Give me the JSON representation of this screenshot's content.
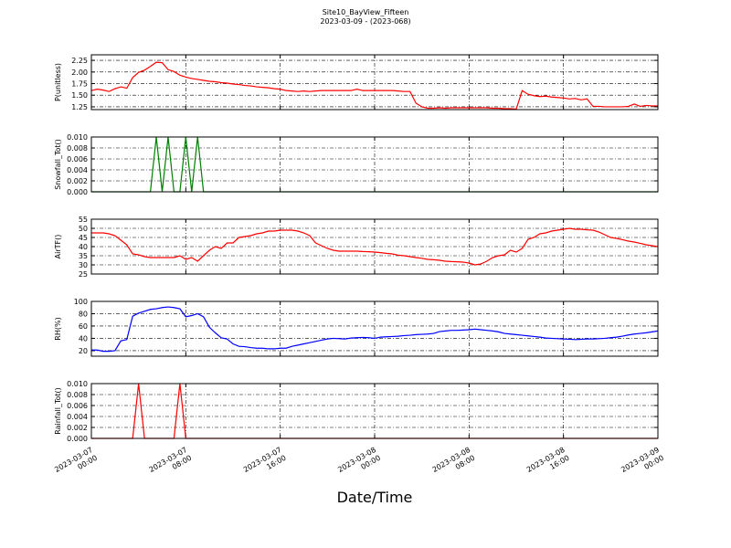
{
  "title": "Site10_BayView_Fifteen",
  "subtitle": "2023-03-09 - (2023-068)",
  "x_axis": {
    "label": "Date/Time",
    "xlim": [
      "2023-03-07 00:00",
      "2023-03-09 00:00"
    ],
    "xticks": [
      "2023-03-07 00:00",
      "2023-03-07 08:00",
      "2023-03-07 16:00",
      "2023-03-08 00:00",
      "2023-03-08 08:00",
      "2023-03-08 16:00",
      "2023-03-09 00:00"
    ],
    "grid": true
  },
  "x": [
    "2023-03-07 00:00",
    "2023-03-07 00:30",
    "2023-03-07 01:00",
    "2023-03-07 01:30",
    "2023-03-07 02:00",
    "2023-03-07 02:30",
    "2023-03-07 03:00",
    "2023-03-07 03:30",
    "2023-03-07 04:00",
    "2023-03-07 04:30",
    "2023-03-07 05:00",
    "2023-03-07 05:30",
    "2023-03-07 06:00",
    "2023-03-07 06:30",
    "2023-03-07 07:00",
    "2023-03-07 07:30",
    "2023-03-07 08:00",
    "2023-03-07 08:30",
    "2023-03-07 09:00",
    "2023-03-07 09:30",
    "2023-03-07 10:00",
    "2023-03-07 10:30",
    "2023-03-07 11:00",
    "2023-03-07 11:30",
    "2023-03-07 12:00",
    "2023-03-07 12:30",
    "2023-03-07 13:00",
    "2023-03-07 13:30",
    "2023-03-07 14:00",
    "2023-03-07 14:30",
    "2023-03-07 15:00",
    "2023-03-07 15:30",
    "2023-03-07 16:00",
    "2023-03-07 16:30",
    "2023-03-07 17:00",
    "2023-03-07 17:30",
    "2023-03-07 18:00",
    "2023-03-07 18:30",
    "2023-03-07 19:00",
    "2023-03-07 19:30",
    "2023-03-07 20:00",
    "2023-03-07 20:30",
    "2023-03-07 21:00",
    "2023-03-07 21:30",
    "2023-03-07 22:00",
    "2023-03-07 22:30",
    "2023-03-07 23:00",
    "2023-03-07 23:30",
    "2023-03-08 00:00",
    "2023-03-08 00:30",
    "2023-03-08 01:00",
    "2023-03-08 01:30",
    "2023-03-08 02:00",
    "2023-03-08 02:30",
    "2023-03-08 03:00",
    "2023-03-08 03:30",
    "2023-03-08 04:00",
    "2023-03-08 04:30",
    "2023-03-08 05:00",
    "2023-03-08 05:30",
    "2023-03-08 06:00",
    "2023-03-08 06:30",
    "2023-03-08 07:00",
    "2023-03-08 07:30",
    "2023-03-08 08:00",
    "2023-03-08 08:30",
    "2023-03-08 09:00",
    "2023-03-08 09:30",
    "2023-03-08 10:00",
    "2023-03-08 10:30",
    "2023-03-08 11:00",
    "2023-03-08 11:30",
    "2023-03-08 12:00",
    "2023-03-08 12:30",
    "2023-03-08 13:00",
    "2023-03-08 13:30",
    "2023-03-08 14:00",
    "2023-03-08 14:30",
    "2023-03-08 15:00",
    "2023-03-08 15:30",
    "2023-03-08 16:00",
    "2023-03-08 16:30",
    "2023-03-08 17:00",
    "2023-03-08 17:30",
    "2023-03-08 18:00",
    "2023-03-08 18:30",
    "2023-03-08 19:00",
    "2023-03-08 19:30",
    "2023-03-08 20:00",
    "2023-03-08 20:30",
    "2023-03-08 21:00",
    "2023-03-08 21:30",
    "2023-03-08 22:00",
    "2023-03-08 22:30",
    "2023-03-08 23:00",
    "2023-03-08 23:30",
    "2023-03-09 00:00"
  ],
  "chart_data": [
    {
      "type": "line",
      "y_label": "P(unitless)",
      "ylim": [
        1.19,
        2.37
      ],
      "yticks": [
        1.25,
        {
          "value": 1.5,
          "label": "1.50"
        },
        1.75,
        {
          "value": 2,
          "label": "2.00"
        },
        2.25
      ],
      "grid": true,
      "series": [
        {
          "color": "#ff0000",
          "values": [
            1.6,
            1.63,
            1.61,
            1.58,
            1.64,
            1.68,
            1.65,
            1.88,
            1.99,
            2.04,
            2.12,
            2.21,
            2.2,
            2.05,
            2.01,
            1.93,
            1.89,
            1.86,
            1.84,
            1.82,
            1.8,
            1.79,
            1.77,
            1.76,
            1.74,
            1.73,
            1.71,
            1.7,
            1.68,
            1.67,
            1.66,
            1.64,
            1.63,
            1.6,
            1.59,
            1.58,
            1.59,
            1.58,
            1.59,
            1.6,
            1.6,
            1.6,
            1.6,
            1.6,
            1.6,
            1.63,
            1.6,
            1.6,
            1.6,
            1.6,
            1.6,
            1.6,
            1.59,
            1.58,
            1.58,
            1.33,
            1.25,
            1.22,
            1.22,
            1.23,
            1.22,
            1.23,
            1.23,
            1.23,
            1.23,
            1.23,
            1.23,
            1.23,
            1.22,
            1.22,
            1.21,
            1.21,
            1.2,
            1.6,
            1.52,
            1.49,
            1.47,
            1.48,
            1.46,
            1.45,
            1.44,
            1.42,
            1.43,
            1.4,
            1.42,
            1.26,
            1.26,
            1.25,
            1.25,
            1.25,
            1.25,
            1.26,
            1.31,
            1.26,
            1.28,
            1.27,
            1.27
          ]
        }
      ]
    },
    {
      "type": "line",
      "y_label": "Snowfall_Tot()",
      "ylim": [
        0,
        0.01
      ],
      "yticks": [
        {
          "value": 0,
          "label": "0.000"
        },
        0.002,
        0.004,
        0.006,
        0.008,
        {
          "value": 0.01,
          "label": "0.010"
        }
      ],
      "grid": true,
      "series": [
        {
          "color": "#008000",
          "values": [
            0,
            0,
            0,
            0,
            0,
            0,
            0,
            0,
            0,
            0,
            0,
            0.01,
            0,
            0.01,
            0,
            0,
            0.01,
            0,
            0.01,
            0,
            0,
            0,
            0,
            0,
            0,
            0,
            0,
            0,
            0,
            0,
            0,
            0,
            0,
            0,
            0,
            0,
            0,
            0,
            0,
            0,
            0,
            0,
            0,
            0,
            0,
            0,
            0,
            0,
            0,
            0,
            0,
            0,
            0,
            0,
            0,
            0,
            0,
            0,
            0,
            0,
            0,
            0,
            0,
            0,
            0,
            0,
            0,
            0,
            0,
            0,
            0,
            0,
            0,
            0,
            0,
            0,
            0,
            0,
            0,
            0,
            0,
            0,
            0,
            0,
            0,
            0,
            0,
            0,
            0,
            0,
            0,
            0,
            0,
            0,
            0,
            0,
            0
          ]
        }
      ]
    },
    {
      "type": "line",
      "y_label": "AirTF()",
      "ylim": [
        25,
        55
      ],
      "yticks": [
        25,
        30,
        35,
        40,
        45,
        50,
        55
      ],
      "grid": true,
      "series": [
        {
          "color": "#ff0000",
          "values": [
            47.5,
            47.5,
            47.5,
            47,
            46,
            43.5,
            41,
            36,
            35.5,
            34.5,
            34,
            34,
            34,
            34,
            34,
            35,
            33,
            34,
            32,
            35,
            38,
            40,
            39,
            42,
            42,
            45,
            45.5,
            46,
            47,
            47.5,
            48.5,
            48.5,
            49,
            49,
            49,
            48.5,
            47.5,
            46,
            42,
            40.5,
            39,
            38,
            37.5,
            37.5,
            37.5,
            37.5,
            37.3,
            37.2,
            37,
            36.7,
            36.3,
            36,
            35.3,
            35,
            34.5,
            34,
            33.6,
            33,
            32.8,
            32.5,
            32,
            31.8,
            31.7,
            31.5,
            31,
            30,
            30.5,
            32,
            34,
            35,
            35.5,
            38,
            37,
            39,
            44,
            45,
            47,
            47.5,
            48.5,
            49,
            49.5,
            50,
            49.5,
            49.5,
            49.2,
            49,
            48,
            46.5,
            45,
            44.5,
            43.8,
            43,
            42.5,
            41.8,
            41,
            40.5,
            40
          ]
        }
      ]
    },
    {
      "type": "line",
      "y_label": "RH(%)",
      "ylim": [
        11,
        100
      ],
      "yticks": [
        20,
        40,
        60,
        80,
        100
      ],
      "grid": true,
      "series": [
        {
          "color": "#0000ff",
          "values": [
            21,
            21,
            19,
            19,
            20,
            36,
            38,
            76,
            81,
            84,
            87,
            88,
            90,
            91,
            90,
            88,
            75,
            77,
            80,
            75,
            58,
            49,
            41,
            39,
            31,
            27,
            26.5,
            25,
            24,
            24,
            23,
            23,
            24,
            24,
            27,
            29,
            31,
            33,
            35,
            37,
            39,
            40,
            39.5,
            39,
            40.5,
            41,
            41.5,
            41,
            40,
            42,
            42.5,
            43,
            43.5,
            44.5,
            45,
            46,
            46.5,
            47,
            48,
            51,
            52,
            53,
            53,
            53.5,
            54,
            55,
            54,
            53,
            52,
            50.5,
            48,
            47,
            46,
            45,
            44,
            43,
            42,
            40.5,
            40,
            39.5,
            39,
            38.5,
            38,
            38.5,
            39,
            39,
            39.5,
            40,
            41,
            42,
            43.5,
            45.5,
            47,
            48,
            49,
            50.5,
            52
          ]
        }
      ]
    },
    {
      "type": "line",
      "y_label": "Rainfall_Tot()",
      "ylim": [
        0,
        0.01
      ],
      "yticks": [
        {
          "value": 0,
          "label": "0.000"
        },
        0.002,
        0.004,
        0.006,
        0.008,
        {
          "value": 0.01,
          "label": "0.010"
        }
      ],
      "grid": true,
      "series": [
        {
          "color": "#ff0000",
          "values": [
            0,
            0,
            0,
            0,
            0,
            0,
            0,
            0,
            0.01,
            0,
            0,
            0,
            0,
            0,
            0,
            0.01,
            0,
            0,
            0,
            0,
            0,
            0,
            0,
            0,
            0,
            0,
            0,
            0,
            0,
            0,
            0,
            0,
            0,
            0,
            0,
            0,
            0,
            0,
            0,
            0,
            0,
            0,
            0,
            0,
            0,
            0,
            0,
            0,
            0,
            0,
            0,
            0,
            0,
            0,
            0,
            0,
            0,
            0,
            0,
            0,
            0,
            0,
            0,
            0,
            0,
            0,
            0,
            0,
            0,
            0,
            0,
            0,
            0,
            0,
            0,
            0,
            0,
            0,
            0,
            0,
            0,
            0,
            0,
            0,
            0,
            0,
            0,
            0,
            0,
            0,
            0,
            0,
            0,
            0,
            0,
            0,
            0
          ]
        }
      ]
    }
  ]
}
